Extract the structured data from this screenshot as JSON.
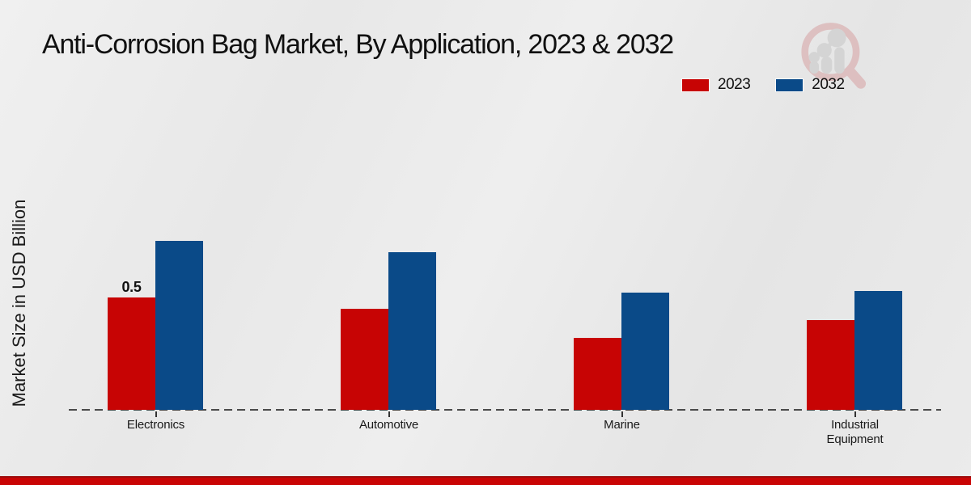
{
  "title": "Anti-Corrosion Bag Market, By Application, 2023 & 2032",
  "chart_data": {
    "type": "bar",
    "title": "Anti-Corrosion Bag Market, By Application, 2023 & 2032",
    "xlabel": "",
    "ylabel": "Market Size in USD Billion",
    "categories": [
      "Electronics",
      "Automotive",
      "Marine",
      "Industrial Equipment"
    ],
    "series": [
      {
        "name": "2023",
        "color": "#c70404",
        "values": [
          0.5,
          0.45,
          0.32,
          0.4
        ],
        "bar_labels": [
          "0.5",
          "",
          "",
          ""
        ]
      },
      {
        "name": "2032",
        "color": "#0a4a88",
        "values": [
          0.75,
          0.7,
          0.52,
          0.53
        ],
        "bar_labels": [
          "",
          "",
          "",
          ""
        ]
      }
    ],
    "ylim": [
      0,
      0.8
    ],
    "grid": false,
    "legend_position": "top-right",
    "baseline_style": "dashed",
    "value_axis_visible": false
  },
  "colors": {
    "bar_2023": "#c70404",
    "bar_2032": "#0a4a88",
    "footer_bar": "#c90404",
    "footer_bar_edge": "#9d0d0d",
    "baseline": "#4a4a4a",
    "background": "#e9e9e9"
  },
  "icons": {
    "watermark": "magnifier-growth-bars-logo"
  }
}
